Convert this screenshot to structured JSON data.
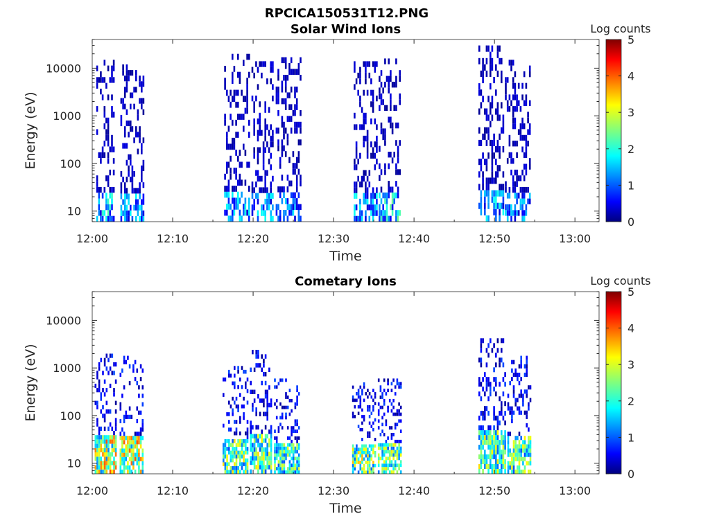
{
  "figure": {
    "title": "RPCICA150531T12.PNG"
  },
  "chart_data": [
    {
      "type": "heatmap",
      "title": "Solar Wind Ions",
      "xlabel": "Time",
      "ylabel": "Energy (eV)",
      "xlim": [
        "12:00",
        "13:03"
      ],
      "ylim": [
        6,
        40000
      ],
      "yscale": "log",
      "x_ticks": [
        "12:00",
        "12:10",
        "12:20",
        "12:30",
        "12:40",
        "12:50",
        "13:00"
      ],
      "y_ticks": [
        "10",
        "100",
        "1000",
        "10000"
      ],
      "colorbar": {
        "label": "Log counts",
        "range": [
          0,
          5
        ],
        "ticks": [
          "0",
          "1",
          "2",
          "3",
          "4",
          "5"
        ],
        "colormap": "jet"
      },
      "bursts": [
        {
          "start_min": 0.5,
          "end_min": 2.8,
          "max_energy": 15000,
          "peak_log_counts": 2.3
        },
        {
          "start_min": 3.5,
          "end_min": 6.3,
          "max_energy": 12000,
          "peak_log_counts": 2.0
        },
        {
          "start_min": 16.4,
          "end_min": 19.4,
          "max_energy": 20000,
          "peak_log_counts": 2.0
        },
        {
          "start_min": 19.8,
          "end_min": 22.4,
          "max_energy": 14000,
          "peak_log_counts": 2.0
        },
        {
          "start_min": 22.8,
          "end_min": 25.8,
          "max_energy": 17000,
          "peak_log_counts": 1.8
        },
        {
          "start_min": 32.5,
          "end_min": 35.3,
          "max_energy": 14000,
          "peak_log_counts": 2.0
        },
        {
          "start_min": 35.6,
          "end_min": 38.2,
          "max_energy": 16000,
          "peak_log_counts": 2.5
        },
        {
          "start_min": 48.0,
          "end_min": 51.2,
          "max_energy": 30000,
          "peak_log_counts": 2.0
        },
        {
          "start_min": 51.3,
          "end_min": 54.5,
          "max_energy": 15000,
          "peak_log_counts": 1.8
        }
      ]
    },
    {
      "type": "heatmap",
      "title": "Cometary Ions",
      "xlabel": "Time",
      "ylabel": "Energy (eV)",
      "xlim": [
        "12:00",
        "13:03"
      ],
      "ylim": [
        6,
        40000
      ],
      "yscale": "log",
      "x_ticks": [
        "12:00",
        "12:10",
        "12:20",
        "12:30",
        "12:40",
        "12:50",
        "13:00"
      ],
      "y_ticks": [
        "10",
        "100",
        "1000",
        "10000"
      ],
      "colorbar": {
        "label": "Log counts",
        "range": [
          0,
          5
        ],
        "ticks": [
          "0",
          "1",
          "2",
          "3",
          "4",
          "5"
        ],
        "colormap": "jet"
      },
      "bursts": [
        {
          "start_min": 0.3,
          "end_min": 3.0,
          "max_energy": 2000,
          "peak_log_counts": 4.0
        },
        {
          "start_min": 3.4,
          "end_min": 6.3,
          "max_energy": 1800,
          "peak_log_counts": 4.0
        },
        {
          "start_min": 16.2,
          "end_min": 19.4,
          "max_energy": 1100,
          "peak_log_counts": 3.3
        },
        {
          "start_min": 19.6,
          "end_min": 22.2,
          "max_energy": 2400,
          "peak_log_counts": 3.3
        },
        {
          "start_min": 22.6,
          "end_min": 25.8,
          "max_energy": 600,
          "peak_log_counts": 3.0
        },
        {
          "start_min": 32.3,
          "end_min": 35.2,
          "max_energy": 500,
          "peak_log_counts": 3.5
        },
        {
          "start_min": 35.5,
          "end_min": 38.4,
          "max_energy": 600,
          "peak_log_counts": 3.3
        },
        {
          "start_min": 48.0,
          "end_min": 51.4,
          "max_energy": 4200,
          "peak_log_counts": 3.3
        },
        {
          "start_min": 51.6,
          "end_min": 54.5,
          "max_energy": 1800,
          "peak_log_counts": 3.2
        }
      ]
    }
  ]
}
